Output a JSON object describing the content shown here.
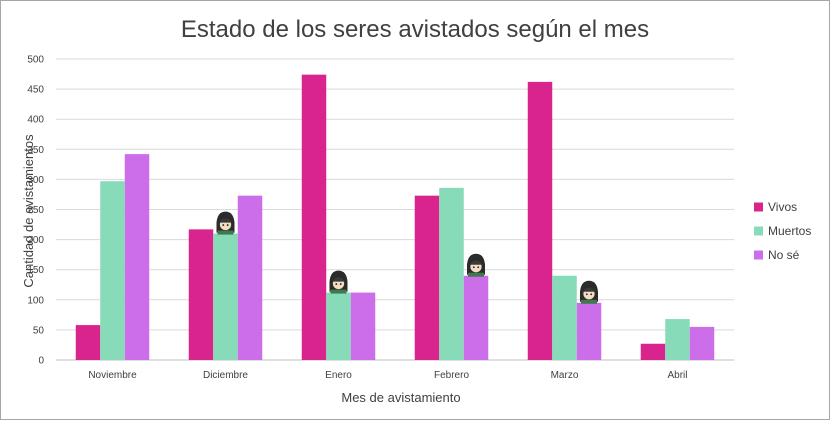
{
  "chart_data": {
    "type": "bar",
    "title": "Estado de los seres avistados según el mes",
    "xlabel": "Mes de avistamiento",
    "ylabel": "Cantidad de avistamientos",
    "ylim": [
      0,
      500
    ],
    "yticks": [
      0,
      50,
      100,
      150,
      200,
      250,
      300,
      350,
      400,
      450,
      500
    ],
    "grid": true,
    "legend_position": "right",
    "categories": [
      "Noviembre",
      "Diciembre",
      "Enero",
      "Febrero",
      "Marzo",
      "Abril"
    ],
    "series": [
      {
        "name": "Vivos",
        "color": "#d9248d",
        "values": [
          58,
          217,
          474,
          273,
          462,
          27
        ]
      },
      {
        "name": "Muertos",
        "color": "#88dbb8",
        "values": [
          297,
          210,
          112,
          286,
          140,
          68
        ]
      },
      {
        "name": "No sé",
        "color": "#cc6ee9",
        "values": [
          342,
          273,
          112,
          140,
          95,
          55
        ]
      }
    ],
    "decorations": [
      {
        "icon": "character-sticker-icon",
        "category_index": 1,
        "series_index": 1
      },
      {
        "icon": "character-sticker-icon",
        "category_index": 2,
        "series_index": 1
      },
      {
        "icon": "character-sticker-icon",
        "category_index": 3,
        "series_index": 2
      },
      {
        "icon": "character-sticker-icon",
        "category_index": 4,
        "series_index": 2
      }
    ]
  }
}
